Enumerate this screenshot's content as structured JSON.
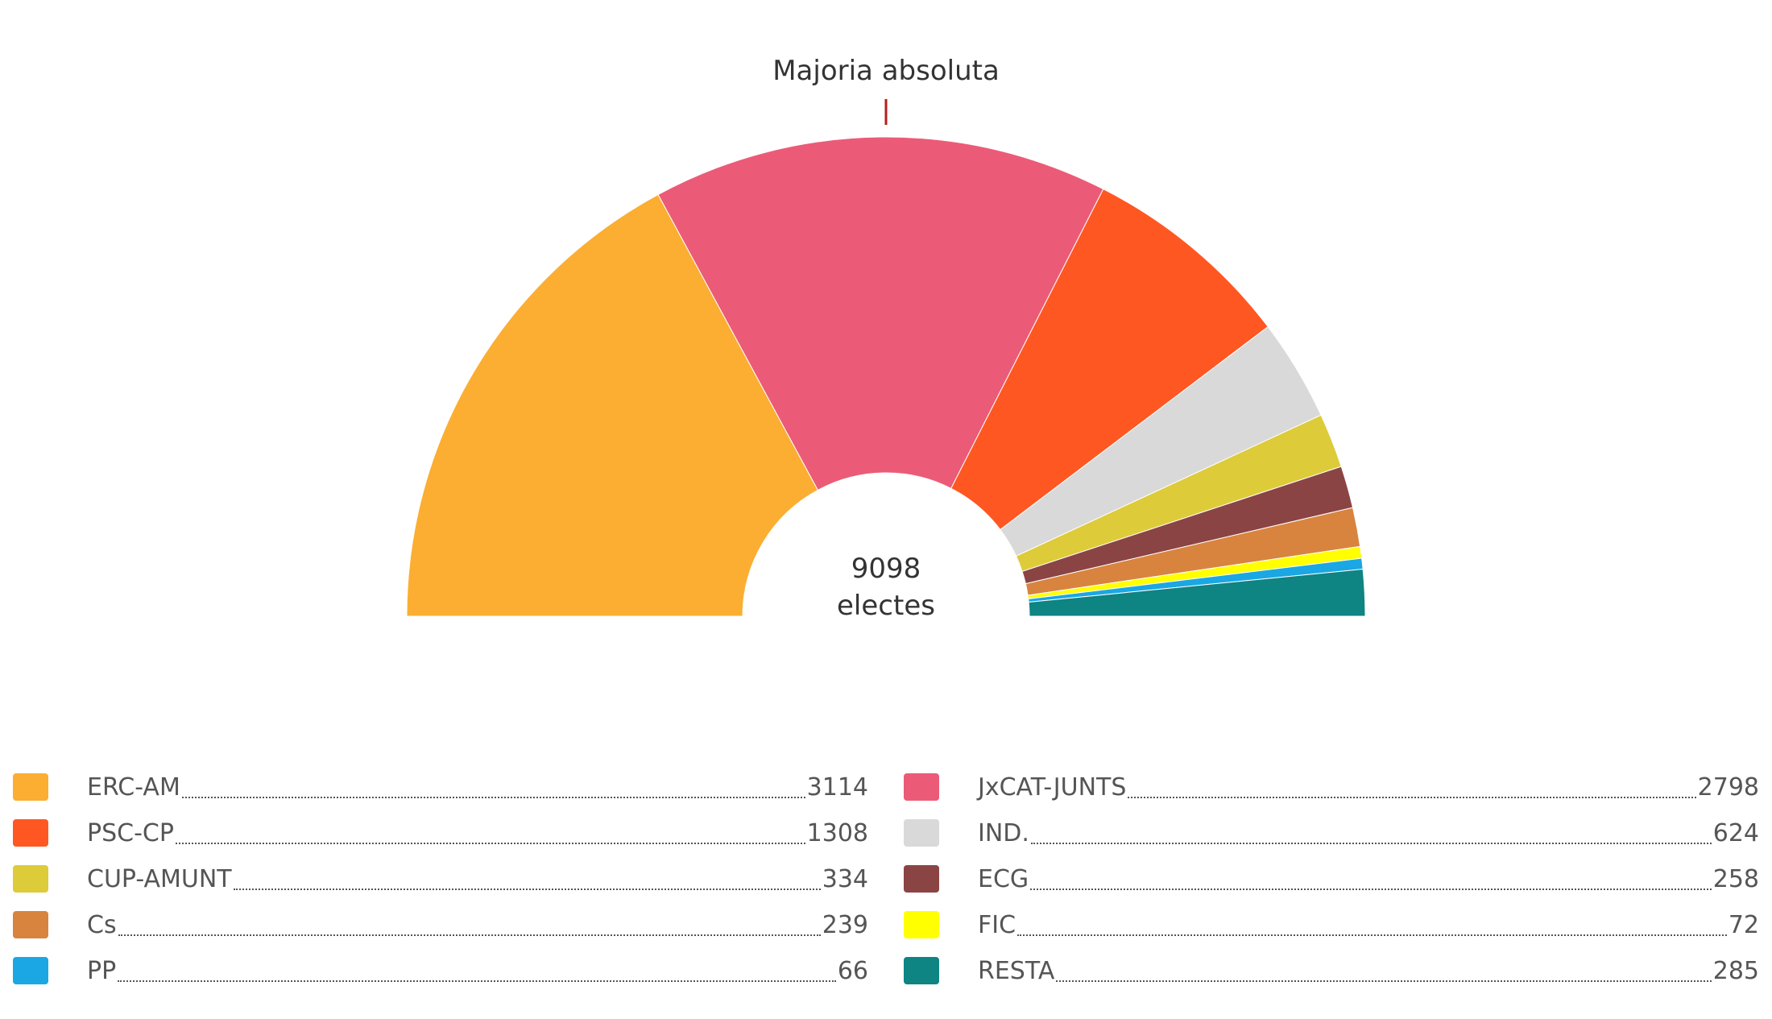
{
  "chart_data": {
    "type": "pie",
    "subtype": "semicircle-donut",
    "title": "",
    "majority_label": "Majoria absoluta",
    "total": {
      "value": "9098",
      "label": "electes"
    },
    "series": [
      {
        "name": "ERC-AM",
        "value": 3114,
        "color": "#FBAE31"
      },
      {
        "name": "JxCAT-JUNTS",
        "value": 2798,
        "color": "#EB5B77"
      },
      {
        "name": "PSC-CP",
        "value": 1308,
        "color": "#FF5722"
      },
      {
        "name": "IND.",
        "value": 624,
        "color": "#D9D9D9"
      },
      {
        "name": "CUP-AMUNT",
        "value": 334,
        "color": "#DDCB3A"
      },
      {
        "name": "ECG",
        "value": 258,
        "color": "#8B4444"
      },
      {
        "name": "Cs",
        "value": 239,
        "color": "#D8843F"
      },
      {
        "name": "FIC",
        "value": 72,
        "color": "#FFFF00"
      },
      {
        "name": "PP",
        "value": 66,
        "color": "#1AA7E4"
      },
      {
        "name": "RESTA",
        "value": 285,
        "color": "#0E8483"
      }
    ],
    "legend": {
      "left_column": [
        {
          "name": "ERC-AM",
          "value": "3114",
          "color": "#FBAE31"
        },
        {
          "name": "PSC-CP",
          "value": "1308",
          "color": "#FF5722"
        },
        {
          "name": "CUP-AMUNT",
          "value": "334",
          "color": "#DDCB3A"
        },
        {
          "name": "Cs",
          "value": "239",
          "color": "#D8843F"
        },
        {
          "name": "PP",
          "value": "66",
          "color": "#1AA7E4"
        }
      ],
      "right_column": [
        {
          "name": "JxCAT-JUNTS",
          "value": "2798",
          "color": "#EB5B77"
        },
        {
          "name": "IND.",
          "value": "624",
          "color": "#D9D9D9"
        },
        {
          "name": "ECG",
          "value": "258",
          "color": "#8B4444"
        },
        {
          "name": "FIC",
          "value": "72",
          "color": "#FFFF00"
        },
        {
          "name": "RESTA",
          "value": "285",
          "color": "#0E8483"
        }
      ]
    },
    "majority_marker_color": "#B71C1C"
  }
}
